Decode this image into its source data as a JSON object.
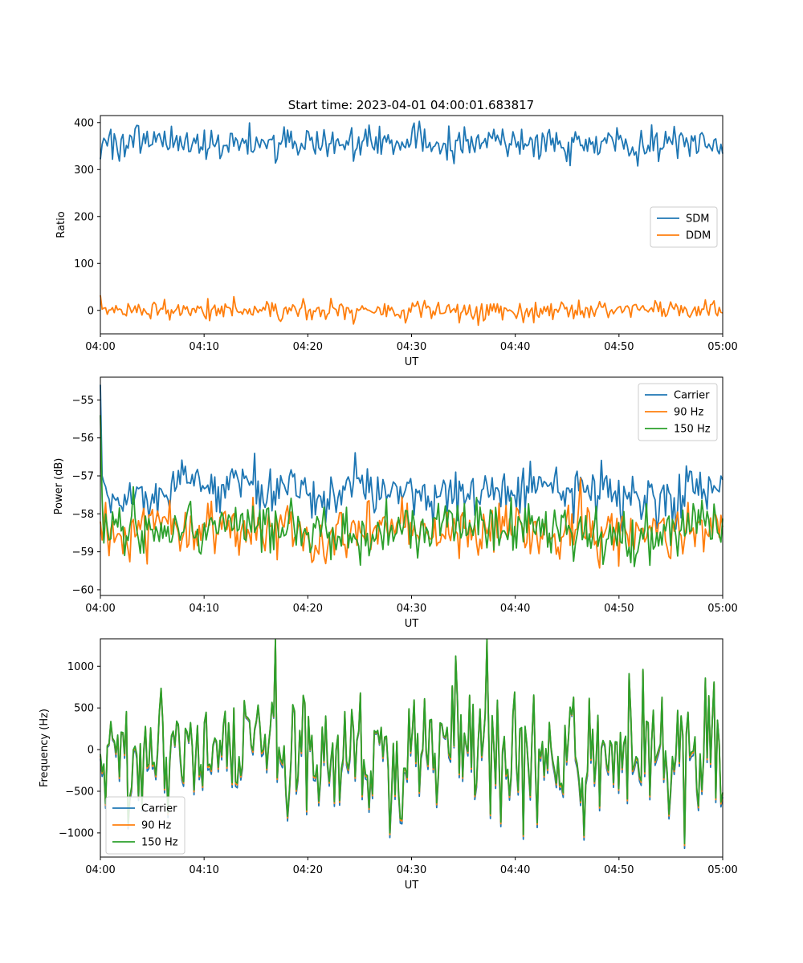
{
  "title": "Start time: 2023-04-01 04:00:01.683817",
  "colors": {
    "blue": "#1f77b4",
    "orange": "#ff7f0e",
    "green": "#2ca02c"
  },
  "chart_data": [
    {
      "type": "line",
      "title": "Start time: 2023-04-01 04:00:01.683817",
      "xlabel": "UT",
      "ylabel": "Ratio",
      "xlim": [
        "04:00",
        "05:00"
      ],
      "ylim": [
        -50,
        415
      ],
      "x_ticks": [
        "04:00",
        "04:10",
        "04:20",
        "04:30",
        "04:40",
        "04:50",
        "05:00"
      ],
      "y_ticks": [
        0,
        100,
        200,
        300,
        400
      ],
      "legend": "center-right",
      "series": [
        {
          "name": "SDM",
          "color": "#1f77b4",
          "mean": 357,
          "spread": 18,
          "values_note": ""
        },
        {
          "name": "DDM",
          "color": "#ff7f0e",
          "mean": 0,
          "spread": 10,
          "values_note": ""
        }
      ]
    },
    {
      "type": "line",
      "xlabel": "UT",
      "ylabel": "Power (dB)",
      "xlim": [
        "04:00",
        "05:00"
      ],
      "ylim": [
        -60.15,
        -54.4
      ],
      "x_ticks": [
        "04:00",
        "04:10",
        "04:20",
        "04:30",
        "04:40",
        "04:50",
        "05:00"
      ],
      "y_ticks": [
        -55,
        -56,
        -57,
        -58,
        -59,
        -60
      ],
      "legend": "upper-right",
      "series": [
        {
          "name": "Carrier",
          "color": "#1f77b4",
          "mean": -57.4,
          "spread": 0.3,
          "start": -54.6
        },
        {
          "name": "90 Hz",
          "color": "#ff7f0e",
          "mean": -58.4,
          "spread": 0.35,
          "start": -58.2
        },
        {
          "name": "150 Hz",
          "color": "#2ca02c",
          "mean": -58.4,
          "spread": 0.35,
          "start": -55.4
        }
      ]
    },
    {
      "type": "line",
      "xlabel": "UT",
      "ylabel": "Frequency (Hz)",
      "xlim": [
        "04:00",
        "05:00"
      ],
      "ylim": [
        -1290,
        1330
      ],
      "x_ticks": [
        "04:00",
        "04:10",
        "04:20",
        "04:30",
        "04:40",
        "04:50",
        "05:00"
      ],
      "y_ticks": [
        1000,
        500,
        0,
        -500,
        -1000
      ],
      "legend": "lower-left",
      "series": [
        {
          "name": "Carrier",
          "color": "#1f77b4",
          "offset": -40
        },
        {
          "name": "90 Hz",
          "color": "#ff7f0e",
          "offset": -15
        },
        {
          "name": "150 Hz",
          "color": "#2ca02c",
          "offset": 0
        }
      ]
    }
  ]
}
